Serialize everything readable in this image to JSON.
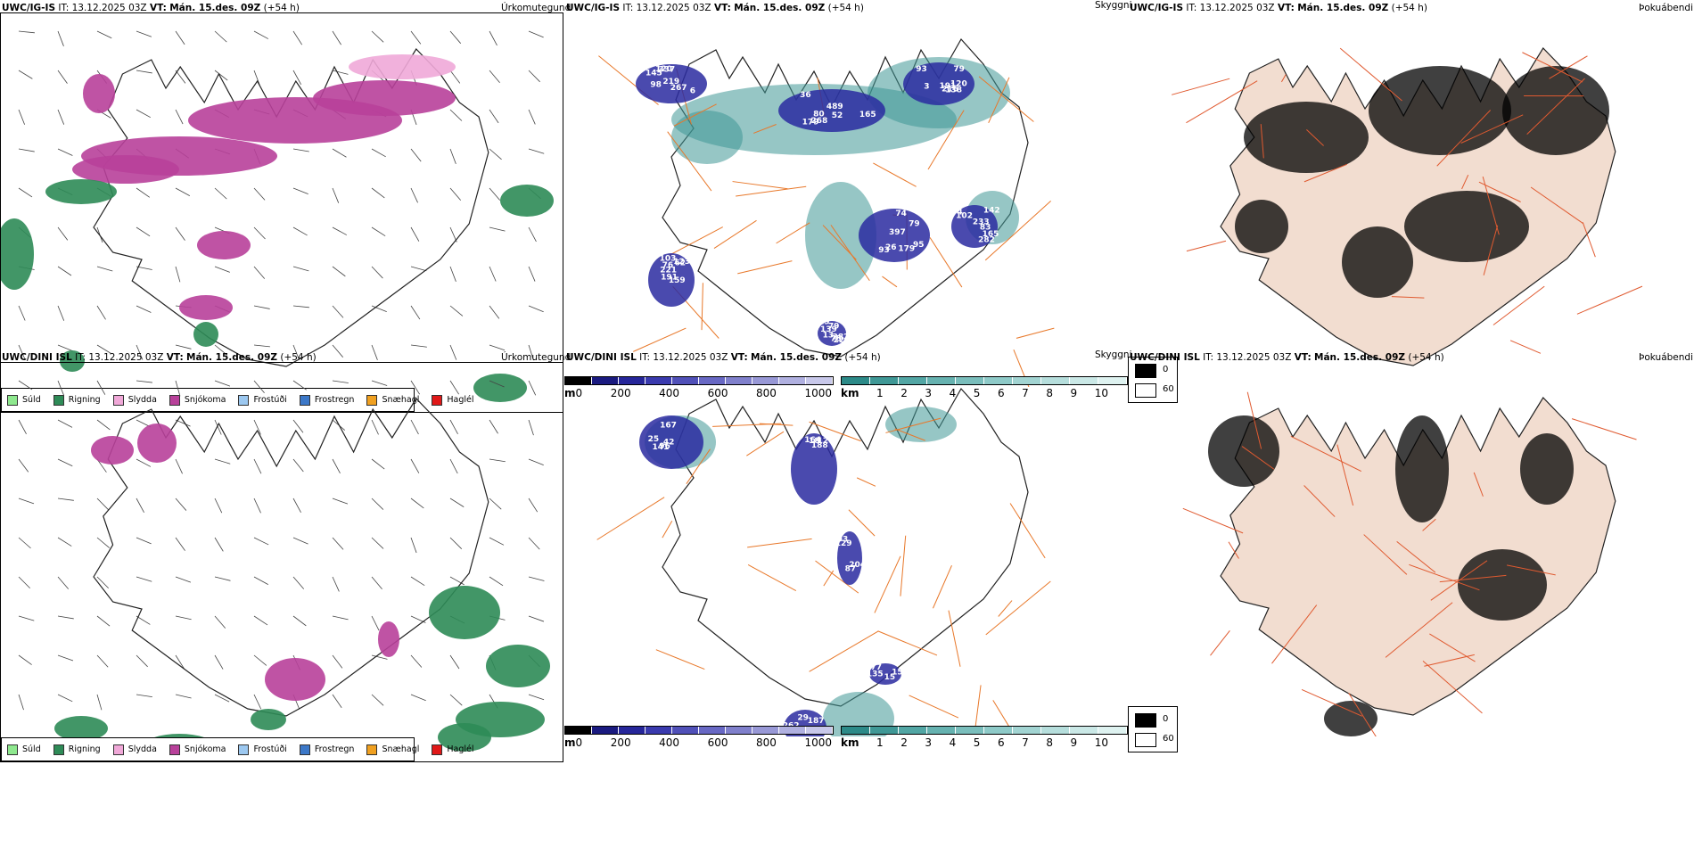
{
  "rows": [
    {
      "model": "UWC/IG-IS",
      "it_label": "IT:",
      "it_value": "13.12.2025 03Z",
      "vt_label": "VT:",
      "vt_value": "Mán. 15.des. 09Z",
      "lead": "(+54 h)",
      "precip_title": "Úrkomutegund",
      "vis_title": "Skyggni",
      "fog_title": "Þokuábendi",
      "ceiling_labels": [
        "98",
        "36",
        "3",
        "397",
        "142",
        "221",
        "129",
        "337",
        "179",
        "138",
        "26",
        "165",
        "159",
        "139",
        "219",
        "52",
        "191",
        "179",
        "282",
        "191",
        "225",
        "120",
        "268",
        "216",
        "95",
        "102",
        "123",
        "282",
        "267",
        "489",
        "120",
        "79",
        "233",
        "76",
        "79",
        "6",
        "80",
        "79",
        "93",
        "74",
        "103",
        "75",
        "145",
        "165",
        "93",
        "74",
        "83",
        "62",
        "13"
      ],
      "vis_labels": []
    },
    {
      "model": "UWC/DINI ISL",
      "it_label": "IT:",
      "it_value": "13.12.2025 03Z",
      "vt_label": "VT:",
      "vt_value": "Mán. 15.des. 09Z",
      "lead": "(+54 h)",
      "precip_title": "Úrkomutegund",
      "vis_title": "Skyggni",
      "fog_title": "Þokuábendi",
      "ceiling_labels": [
        "42",
        "188",
        "129",
        "187",
        "15",
        "25",
        "18",
        "87",
        "29",
        "135",
        "167",
        "127",
        "204",
        "104",
        "15",
        "141",
        "164",
        "93",
        "262",
        "77",
        "96"
      ],
      "vis_labels": []
    }
  ],
  "precip_legend": [
    {
      "label": "Súld",
      "color": "#8ee88e"
    },
    {
      "label": "Rigning",
      "color": "#2e8b57"
    },
    {
      "label": "Slydda",
      "color": "#f0a8d8"
    },
    {
      "label": "Snjókoma",
      "color": "#b8409a"
    },
    {
      "label": "Frostúði",
      "color": "#9cc8f0"
    },
    {
      "label": "Frostregn",
      "color": "#3c78c8"
    },
    {
      "label": "Snæhagl",
      "color": "#f0a020"
    },
    {
      "label": "Haglél",
      "color": "#e01818"
    }
  ],
  "ceiling_bar": {
    "unit": "m",
    "ticks": [
      "0",
      "200",
      "400",
      "600",
      "800",
      "1000"
    ],
    "colors": [
      "#000000",
      "#1a1a80",
      "#26269a",
      "#3a3aae",
      "#5050b8",
      "#6868c4",
      "#8080cc",
      "#9898d6",
      "#b0b0e0",
      "#c8c8ea"
    ]
  },
  "vis_bar": {
    "unit": "km",
    "ticks": [
      "1",
      "2",
      "3",
      "4",
      "5",
      "6",
      "7",
      "8",
      "9",
      "10"
    ],
    "colors": [
      "#2c8a88",
      "#3f9896",
      "#52a6a4",
      "#66b2b0",
      "#7abebc",
      "#8ecac8",
      "#a2d4d2",
      "#b6dedc",
      "#cae8e6",
      "#def2f0"
    ]
  },
  "fog_legend": {
    "high": "0",
    "low": "60",
    "high_color": "#000000",
    "low_color": "#ffffff"
  },
  "colors": {
    "snow": "#b8409a",
    "rain": "#2e8b57",
    "sleet": "#f0a8d8",
    "roads": "#e8782a",
    "land": "#f2ddd0",
    "ceiling": "#2a2aa0",
    "visibility": "#3f9896"
  }
}
